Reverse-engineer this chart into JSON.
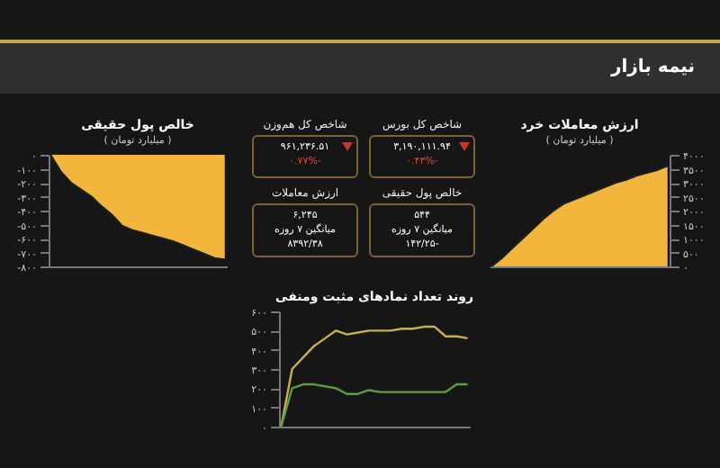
{
  "chart_data": [
    {
      "type": "other",
      "title": "نیمه بازار",
      "annotations": [
        "شاخص کل بورس",
        "۳,۱۹۰,۱۱۱.۹۴",
        "-۰.۴۳%",
        "شاخص کل هم‌وزن",
        "۹۶۱,۲۳۶.۵۱",
        "-۰.۷۷%",
        "خالص پول حقیقی",
        "۵۴۴",
        "میانگین ۷ روزه",
        "-۱۴۲/۲۵",
        "ارزش معاملات",
        "۶,۲۴۵",
        "میانگین ۷ روزه",
        "۸۳۹۲/۳۸"
      ]
    },
    {
      "type": "area",
      "title": "ارزش معاملات خرد",
      "subtitle": "( میلیارد تومان )",
      "categories": [
        null,
        null,
        null,
        null,
        null,
        null,
        null,
        null,
        null,
        null,
        null,
        null,
        null,
        null,
        null,
        null,
        null,
        null
      ],
      "series": [
        {
          "color": "#f2b63d",
          "values": [
            0,
            300,
            650,
            1000,
            1350,
            1700,
            2000,
            2250,
            2400,
            2550,
            2700,
            2850,
            3000,
            3100,
            3250,
            3350,
            3450,
            3600
          ]
        }
      ],
      "ylim": [
        0,
        4000
      ],
      "yticks": [
        {
          "value": 0,
          "label": "۰"
        },
        {
          "value": 500,
          "label": "۵۰۰"
        },
        {
          "value": 1000,
          "label": "۱۰۰۰"
        },
        {
          "value": 1500,
          "label": "۱۵۰۰"
        },
        {
          "value": 2000,
          "label": "۲۰۰۰"
        },
        {
          "value": 2500,
          "label": "۲۵۰۰"
        },
        {
          "value": 3000,
          "label": "۳۰۰۰"
        },
        {
          "value": 3500,
          "label": "۳۵۰۰"
        },
        {
          "value": 4000,
          "label": "۴۰۰۰"
        }
      ]
    },
    {
      "type": "area",
      "title": "خالص پول حقیقی",
      "subtitle": "( میلیارد تومان )",
      "categories": [
        null,
        null,
        null,
        null,
        null,
        null,
        null,
        null,
        null,
        null,
        null,
        null,
        null,
        null,
        null,
        null,
        null,
        null
      ],
      "series": [
        {
          "color": "#f2b63d",
          "values": [
            0,
            -120,
            -200,
            -250,
            -300,
            -370,
            -430,
            -510,
            -540,
            -560,
            -580,
            -600,
            -620,
            -650,
            -680,
            -710,
            -740,
            -750
          ]
        }
      ],
      "ylim": [
        -800,
        0
      ],
      "yticks": [
        {
          "value": -800,
          "label": "-۸۰۰"
        },
        {
          "value": -700,
          "label": "-۷۰۰"
        },
        {
          "value": -600,
          "label": "-۶۰۰"
        },
        {
          "value": -500,
          "label": "-۵۰۰"
        },
        {
          "value": -400,
          "label": "-۴۰۰"
        },
        {
          "value": -300,
          "label": "-۳۰۰"
        },
        {
          "value": -200,
          "label": "-۲۰۰"
        },
        {
          "value": -100,
          "label": "-۱۰۰"
        },
        {
          "value": 0,
          "label": "۰"
        }
      ]
    },
    {
      "type": "line",
      "title": "روند تعداد نمادهای مثبت ومنفی",
      "categories": [
        null,
        null,
        null,
        null,
        null,
        null,
        null,
        null,
        null,
        null,
        null,
        null,
        null,
        null,
        null,
        null,
        null,
        null
      ],
      "series": [
        {
          "color": "#c9b04e",
          "values": [
            0,
            300,
            360,
            420,
            460,
            500,
            480,
            490,
            500,
            500,
            500,
            510,
            510,
            520,
            520,
            470,
            470,
            460
          ]
        },
        {
          "color": "#5f9a45",
          "values": [
            0,
            200,
            220,
            220,
            210,
            200,
            170,
            170,
            190,
            180,
            180,
            180,
            180,
            180,
            180,
            180,
            220,
            220
          ]
        }
      ],
      "ylim": [
        0,
        600
      ],
      "yticks": [
        {
          "value": 0,
          "label": "۰"
        },
        {
          "value": 100,
          "label": "۱۰۰"
        },
        {
          "value": 200,
          "label": "۲۰۰"
        },
        {
          "value": 300,
          "label": "۳۰۰"
        },
        {
          "value": 400,
          "label": "۴۰۰"
        },
        {
          "value": 500,
          "label": "۵۰۰"
        },
        {
          "value": 600,
          "label": "۶۰۰"
        }
      ]
    }
  ]
}
